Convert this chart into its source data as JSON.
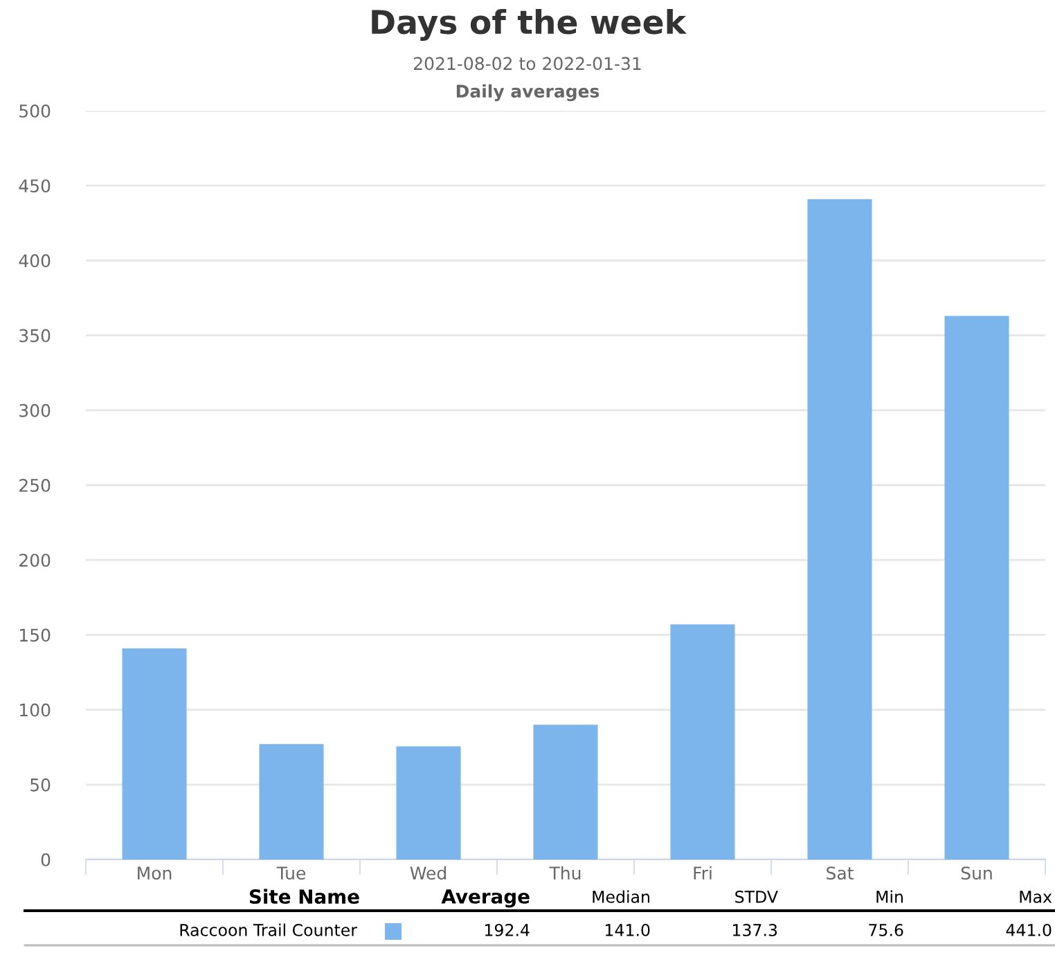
{
  "chart_data": {
    "type": "bar",
    "title": "Days of the week",
    "subtitle": "2021-08-02 to 2022-01-31\nDaily averages",
    "categories": [
      "Mon",
      "Tue",
      "Wed",
      "Thu",
      "Fri",
      "Sat",
      "Sun"
    ],
    "series": [
      {
        "name": "Raccoon Trail Counter",
        "color": "#7cb5ec",
        "values": [
          141.0,
          77,
          75.6,
          90,
          157,
          441.0,
          363
        ]
      }
    ],
    "ylim": [
      0,
      500
    ],
    "yticks": [
      0,
      50,
      100,
      150,
      200,
      250,
      300,
      350,
      400,
      450,
      500
    ],
    "grid": "y",
    "legend": "bottom",
    "annotations": [
      "Site Name",
      "Average",
      "Median",
      "STDV",
      "Min",
      "Max",
      "192.4",
      "141.0",
      "137.3",
      "75.6",
      "441.0"
    ]
  }
}
